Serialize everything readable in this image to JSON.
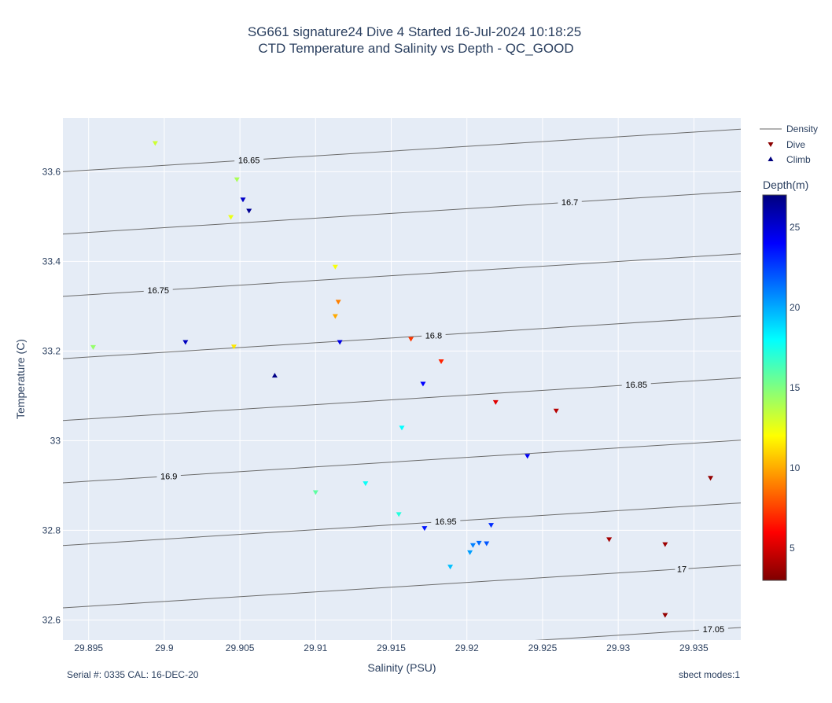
{
  "chart_data": {
    "type": "scatter",
    "title": [
      "SG661 signature24 Dive 4 Started 16-Jul-2024 10:18:25",
      "CTD Temperature and Salinity vs Depth - QC_GOOD"
    ],
    "xlabel": "Salinity (PSU)",
    "ylabel": "Temperature (C)",
    "xlim": [
      29.8933,
      29.9381
    ],
    "ylim": [
      32.555,
      33.72
    ],
    "x_ticks": [
      29.895,
      29.9,
      29.905,
      29.91,
      29.915,
      29.92,
      29.925,
      29.93,
      29.935
    ],
    "x_tick_labels": [
      "29.895",
      "29.9",
      "29.905",
      "29.91",
      "29.915",
      "29.92",
      "29.925",
      "29.93",
      "29.935"
    ],
    "y_ticks": [
      32.6,
      32.8,
      33.0,
      33.2,
      33.4,
      33.6
    ],
    "y_tick_labels": [
      "32.6",
      "32.8",
      "33",
      "33.2",
      "33.4",
      "33.6"
    ],
    "grid": true,
    "legend_position": "top-right",
    "legend": [
      {
        "name": "Density",
        "symbol": "line"
      },
      {
        "name": "Dive",
        "symbol": "triangle-down"
      },
      {
        "name": "Climb",
        "symbol": "triangle-up"
      }
    ],
    "colorbar": {
      "title": "Depth(m)",
      "range": [
        3,
        27
      ],
      "ticks": [
        5,
        10,
        15,
        20,
        25
      ],
      "tick_labels": [
        "5",
        "10",
        "15",
        "20",
        "25"
      ],
      "colorscale": [
        "#7f0000",
        "#ff0000",
        "#ff8000",
        "#ffff00",
        "#80ff80",
        "#00ffff",
        "#0080ff",
        "#0000ff",
        "#00007f"
      ]
    },
    "density_contours": [
      {
        "label": "16.65",
        "y_left": 33.6,
        "y_right": 33.695,
        "label_x": 29.9056
      },
      {
        "label": "16.7",
        "y_left": 33.461,
        "y_right": 33.556,
        "label_x": 29.9268
      },
      {
        "label": "16.75",
        "y_left": 33.322,
        "y_right": 33.417,
        "label_x": 29.8996
      },
      {
        "label": "16.8",
        "y_left": 33.183,
        "y_right": 33.278,
        "label_x": 29.9178
      },
      {
        "label": "16.85",
        "y_left": 33.045,
        "y_right": 33.14,
        "label_x": 29.9312
      },
      {
        "label": "16.9",
        "y_left": 32.906,
        "y_right": 33.001,
        "label_x": 29.9003
      },
      {
        "label": "16.95",
        "y_left": 32.766,
        "y_right": 32.861,
        "label_x": 29.9186
      },
      {
        "label": "17",
        "y_left": 32.627,
        "y_right": 32.722,
        "label_x": 29.9342
      },
      {
        "label": "17.05",
        "y_left": 32.488,
        "y_right": 32.583,
        "label_x": 29.9363
      }
    ],
    "series": [
      {
        "name": "Dive",
        "symbol": "triangle-down",
        "points": [
          {
            "x": 29.9361,
            "y": 32.916,
            "depth": 3.5
          },
          {
            "x": 29.9331,
            "y": 32.61,
            "depth": 3.5
          },
          {
            "x": 29.9331,
            "y": 32.768,
            "depth": 3.7
          },
          {
            "x": 29.9294,
            "y": 32.779,
            "depth": 3.9
          },
          {
            "x": 29.9259,
            "y": 33.066,
            "depth": 4.3
          },
          {
            "x": 29.9219,
            "y": 33.085,
            "depth": 5.3
          },
          {
            "x": 29.9183,
            "y": 33.176,
            "depth": 6.8
          },
          {
            "x": 29.9163,
            "y": 33.226,
            "depth": 7.3
          },
          {
            "x": 29.9115,
            "y": 33.309,
            "depth": 9.0
          },
          {
            "x": 29.9113,
            "y": 33.277,
            "depth": 10.0
          },
          {
            "x": 29.9113,
            "y": 33.387,
            "depth": 12.2
          },
          {
            "x": 29.9046,
            "y": 33.209,
            "depth": 11.5
          },
          {
            "x": 29.9044,
            "y": 33.498,
            "depth": 12.5
          },
          {
            "x": 29.8994,
            "y": 33.663,
            "depth": 13.2
          },
          {
            "x": 29.9048,
            "y": 33.582,
            "depth": 14.0
          },
          {
            "x": 29.8953,
            "y": 33.208,
            "depth": 14.5
          },
          {
            "x": 29.91,
            "y": 32.884,
            "depth": 15.8
          },
          {
            "x": 29.9155,
            "y": 32.835,
            "depth": 17.2
          },
          {
            "x": 29.9133,
            "y": 32.904,
            "depth": 17.8
          },
          {
            "x": 29.9157,
            "y": 33.028,
            "depth": 18.0
          },
          {
            "x": 29.9189,
            "y": 32.718,
            "depth": 19.5
          },
          {
            "x": 29.9202,
            "y": 32.75,
            "depth": 20.3
          },
          {
            "x": 29.9204,
            "y": 32.766,
            "depth": 21.0
          },
          {
            "x": 29.9208,
            "y": 32.771,
            "depth": 21.5
          },
          {
            "x": 29.9213,
            "y": 32.77,
            "depth": 22.0
          },
          {
            "x": 29.9216,
            "y": 32.811,
            "depth": 23.0
          },
          {
            "x": 29.9172,
            "y": 32.804,
            "depth": 23.5
          },
          {
            "x": 29.924,
            "y": 32.965,
            "depth": 24.2
          },
          {
            "x": 29.9171,
            "y": 33.126,
            "depth": 24.0
          },
          {
            "x": 29.9116,
            "y": 33.219,
            "depth": 24.6
          },
          {
            "x": 29.9014,
            "y": 33.219,
            "depth": 25.5
          },
          {
            "x": 29.9052,
            "y": 33.537,
            "depth": 25.3
          },
          {
            "x": 29.9056,
            "y": 33.512,
            "depth": 26.5
          }
        ]
      },
      {
        "name": "Climb",
        "symbol": "triangle-up",
        "points": [
          {
            "x": 29.9073,
            "y": 33.146,
            "depth": 26.8
          }
        ]
      }
    ],
    "footer_left": "Serial #: 0335  CAL: 16-DEC-20",
    "footer_right": "sbect modes:1"
  }
}
